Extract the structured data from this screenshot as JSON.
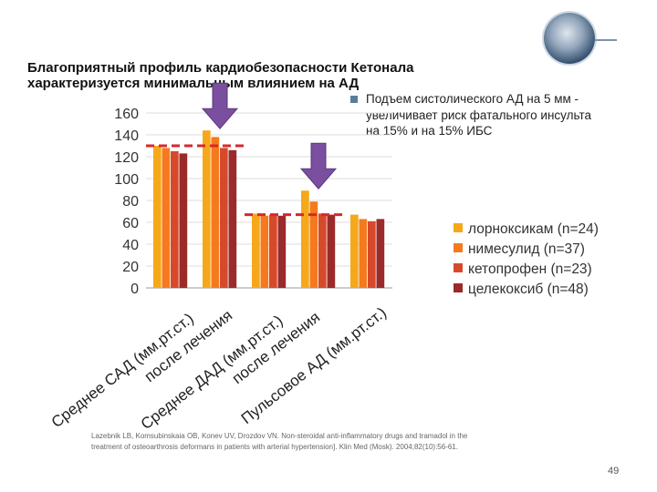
{
  "title_line1": "Благоприятный профиль кардиобезопасности Кетонала",
  "title_line2": "характеризуется минимальным влиянием на АД",
  "bullet_lines": [
    "Подъем систолического АД на 5 мм -",
    "увеличивает риск фатального инсульта",
    "на 15% и на 15% ИБС"
  ],
  "reference_lines": [
    "Lazebnik LB, Komsubinskaia OB, Konev UV, Drozdov VN. Non-steroidal anti-inflammatory drugs and tramadol in the",
    "treatment of osteoarthrosis deformans in patients with arterial hypertension]. Klin Med (Mosk). 2004;82(10):56-61."
  ],
  "page_number": "49",
  "colors": {
    "series": [
      "#f6a81b",
      "#f57a1f",
      "#d64a2b",
      "#9a2b2a"
    ],
    "reference_line": "#d8282b",
    "arrow": "#7a4f9f",
    "bullet": "#5b7c9a",
    "gridline": "#dddddd"
  },
  "chart_data": {
    "type": "bar",
    "title": "",
    "xlabel": "",
    "ylabel": "",
    "ylim": [
      0,
      160
    ],
    "yticks": [
      0,
      20,
      40,
      60,
      80,
      100,
      120,
      140,
      160
    ],
    "grid": true,
    "legend_position": "right",
    "categories": [
      "Среднее САД (мм.рт.ст.)",
      "после лечения",
      "Среднее ДАД (мм.рт.ст.)",
      "после лечения",
      "Пульсовое АД (мм.рт.ст.)"
    ],
    "series": [
      {
        "name": "лорноксикам (n=24)",
        "values": [
          130,
          144,
          68,
          89,
          67
        ]
      },
      {
        "name": "нимесулид (n=37)",
        "values": [
          128,
          138,
          66,
          79,
          63
        ]
      },
      {
        "name": "кетопрофен (n=23)",
        "values": [
          125,
          128,
          67,
          68,
          61
        ]
      },
      {
        "name": "целекоксиб (n=48)",
        "values": [
          123,
          126,
          66,
          67,
          63
        ]
      }
    ],
    "reference_lines": [
      {
        "y": 130,
        "from_category": 0,
        "to_category": 1
      },
      {
        "y": 67,
        "from_category": 2,
        "to_category": 3
      }
    ],
    "arrow_markers_at_categories": [
      1,
      3
    ]
  }
}
